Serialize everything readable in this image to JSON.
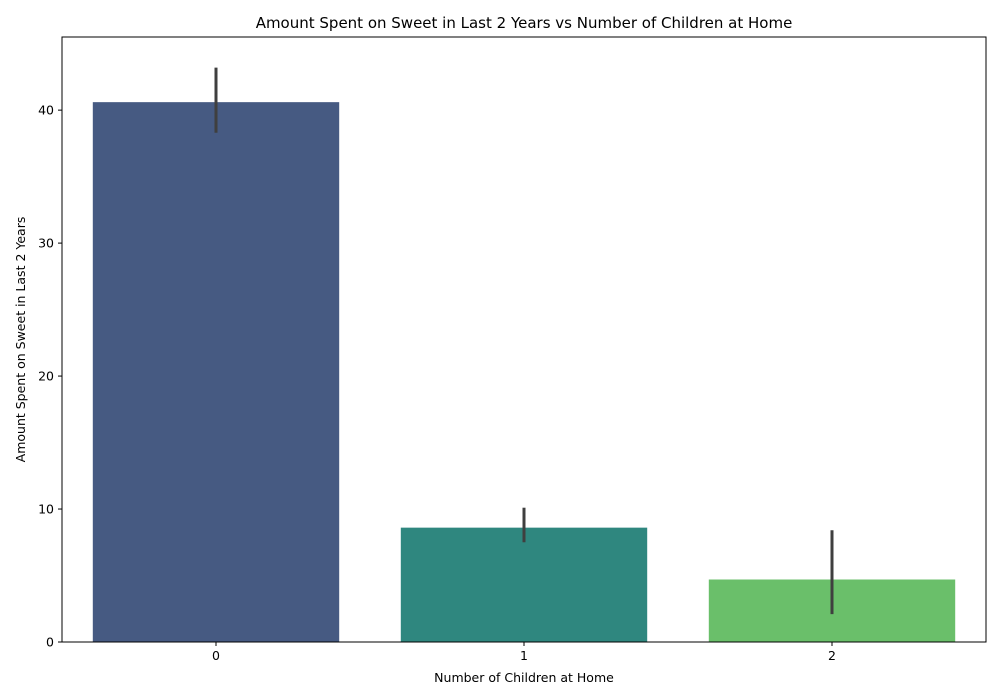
{
  "chart_data": {
    "type": "bar",
    "title": "Amount Spent on Sweet in Last 2 Years vs Number of Children at Home",
    "xlabel": "Number of Children at Home",
    "ylabel": "Amount Spent on Sweet in Last 2 Years",
    "categories": [
      "0",
      "1",
      "2"
    ],
    "values": [
      40.6,
      8.6,
      4.7
    ],
    "error_low": [
      38.3,
      7.5,
      2.1
    ],
    "error_high": [
      43.2,
      10.1,
      8.4
    ],
    "colors": [
      "#465a82",
      "#2f877f",
      "#6abf6a"
    ],
    "error_color": "#3f3f3f",
    "ylim": [
      0,
      45.5
    ],
    "yticks": [
      0,
      10,
      20,
      30,
      40
    ],
    "grid": false
  }
}
